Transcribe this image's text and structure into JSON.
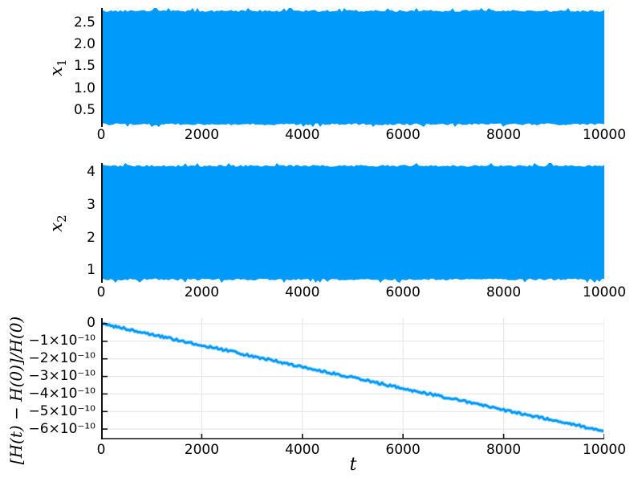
{
  "colors": {
    "series_blue": "#009AFA",
    "left_spine": "#111111",
    "bottom_spine": "#4d4d4d",
    "grid": "#e3e3e3",
    "text": "#000000",
    "background": "#ffffff"
  },
  "chart_data": [
    {
      "type": "line",
      "id": "x1-vs-t",
      "ylabel_base": "x",
      "ylabel_sub": "1",
      "xlim": [
        0,
        10000
      ],
      "ylim": [
        0.124,
        2.83
      ],
      "xticks": [
        0,
        2000,
        4000,
        6000,
        8000,
        10000
      ],
      "xtick_labels": [
        "0",
        "2000",
        "4000",
        "6000",
        "8000",
        "10000"
      ],
      "yticks": [
        0.5,
        1.0,
        1.5,
        2.0,
        2.5
      ],
      "ytick_labels": [
        "0.5",
        "1.0",
        "1.5",
        "2.0",
        "2.5"
      ],
      "series": [
        {
          "name": "x1(t)",
          "style": "dense_oscillation_fill",
          "envelope_min": 0.16,
          "envelope_max": 2.79
        }
      ]
    },
    {
      "type": "line",
      "id": "x2-vs-t",
      "ylabel_base": "x",
      "ylabel_sub": "2",
      "xlim": [
        0,
        10000
      ],
      "ylim": [
        0.631,
        4.283
      ],
      "xticks": [
        0,
        2000,
        4000,
        6000,
        8000,
        10000
      ],
      "xtick_labels": [
        "0",
        "2000",
        "4000",
        "6000",
        "8000",
        "10000"
      ],
      "yticks": [
        1,
        2,
        3,
        4
      ],
      "ytick_labels": [
        "1",
        "2",
        "3",
        "4"
      ],
      "series": [
        {
          "name": "x2(t)",
          "style": "dense_oscillation_fill",
          "envelope_min": 0.7,
          "envelope_max": 4.23
        }
      ]
    },
    {
      "type": "line",
      "id": "relative-energy-error-vs-t",
      "ylabel": "[H(t) − H(0)]/H(0)",
      "xlabel": "t",
      "xlim": [
        0,
        10000
      ],
      "ylim": [
        -6.589e-10,
        3.2e-11
      ],
      "xticks": [
        0,
        2000,
        4000,
        6000,
        8000,
        10000
      ],
      "xtick_labels": [
        "0",
        "2000",
        "4000",
        "6000",
        "8000",
        "10000"
      ],
      "yticks": [
        0,
        -1e-10,
        -2e-10,
        -3e-10,
        -4e-10,
        -5e-10,
        -6e-10
      ],
      "ytick_labels": [
        "0",
        "−1×10⁻¹⁰",
        "−2×10⁻¹⁰",
        "−3×10⁻¹⁰",
        "−4×10⁻¹⁰",
        "−5×10⁻¹⁰",
        "−6×10⁻¹⁰"
      ],
      "grid": true,
      "series": [
        {
          "name": "relative energy error",
          "style": "fuzzy_line",
          "x": [
            0,
            500,
            1000,
            1500,
            2000,
            2500,
            3000,
            3500,
            4000,
            4500,
            5000,
            5500,
            6000,
            6500,
            7000,
            7500,
            8000,
            8500,
            9000,
            9500,
            10000
          ],
          "y": [
            0,
            -2.9e-11,
            -6e-11,
            -9.2e-11,
            -1.23e-10,
            -1.52e-10,
            -1.84e-10,
            -2.14e-10,
            -2.46e-10,
            -2.76e-10,
            -3.06e-10,
            -3.37e-10,
            -3.68e-10,
            -3.99e-10,
            -4.29e-10,
            -4.6e-10,
            -4.91e-10,
            -5.21e-10,
            -5.51e-10,
            -5.81e-10,
            -6.1e-10
          ]
        }
      ]
    }
  ]
}
